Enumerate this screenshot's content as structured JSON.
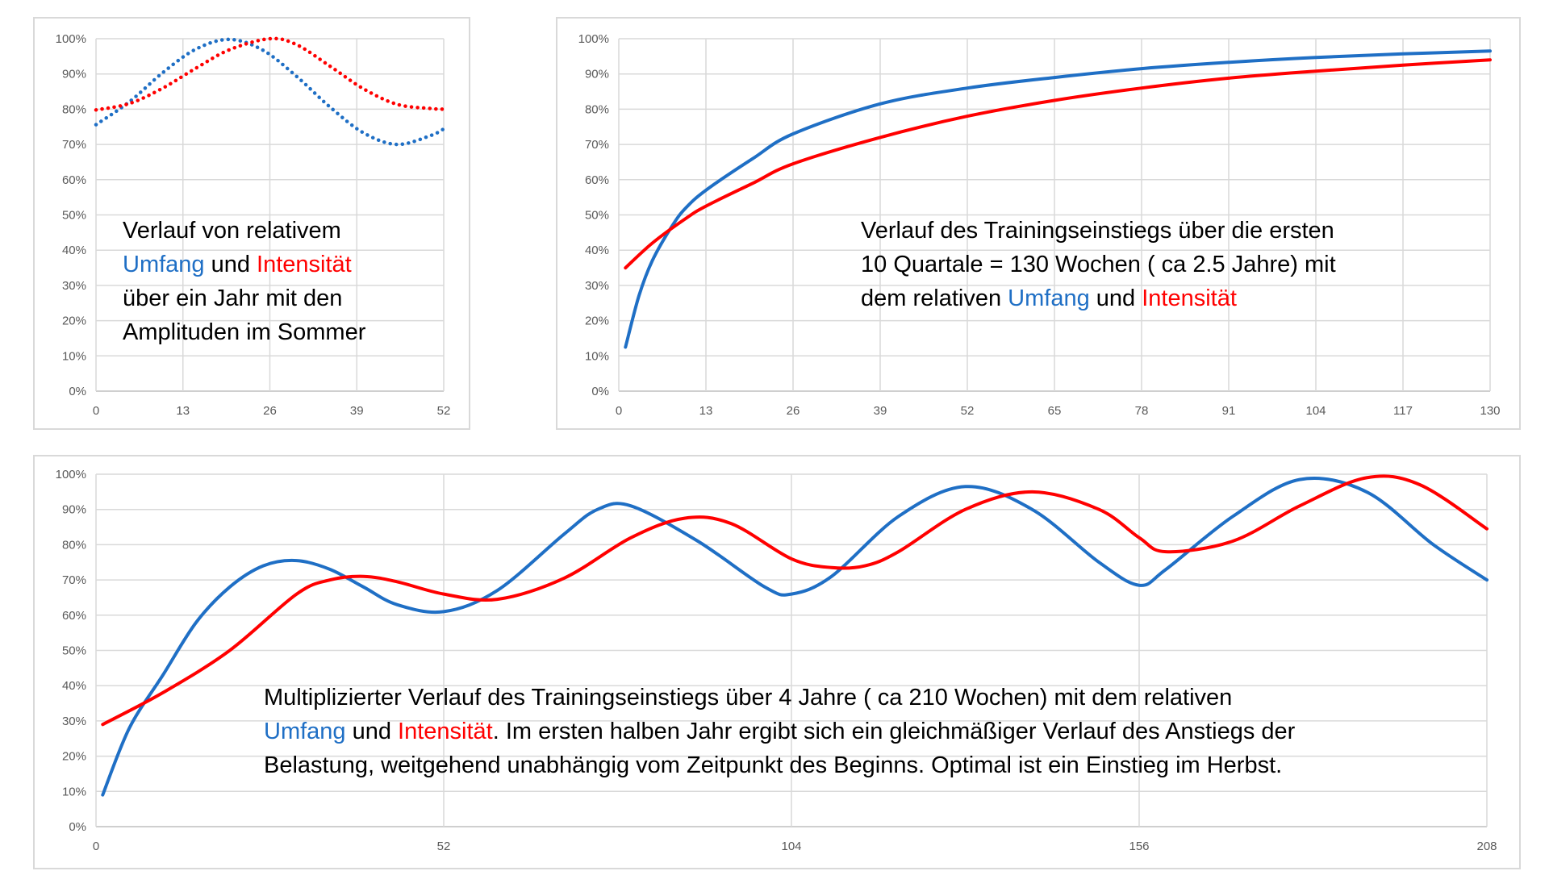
{
  "colors": {
    "umfang": "#1f6fc5",
    "intensitaet": "#ff0000",
    "grid": "#d9d9d9",
    "tick_text": "#595959"
  },
  "chart_data": [
    {
      "type": "scatter",
      "x_ticks": [
        "0",
        "13",
        "26",
        "39",
        "52"
      ],
      "y_ticks": [
        "0%",
        "10%",
        "20%",
        "30%",
        "40%",
        "50%",
        "60%",
        "70%",
        "80%",
        "90%",
        "100%"
      ],
      "xlim": [
        0,
        52
      ],
      "ylim": [
        0,
        100
      ],
      "grid": true,
      "caption": {
        "line1": "Verlauf von relativem",
        "line2_blue": "Umfang",
        "line2_mid": " und ",
        "line2_red": "Intensität",
        "line3": "über ein Jahr mit den",
        "line4": "Amplituden im Sommer"
      },
      "series": [
        {
          "color": "#1f6fc5",
          "style": "dotted",
          "x": [
            0,
            5,
            10,
            15,
            20,
            25,
            30,
            35,
            40,
            45,
            50,
            52
          ],
          "y": [
            75.6,
            82.1,
            90.4,
            97.1,
            99.8,
            96.7,
            89.3,
            80.6,
            73.3,
            70.0,
            72.5,
            74.4
          ]
        },
        {
          "color": "#ff0000",
          "style": "dotted",
          "x": [
            0,
            5,
            10,
            15,
            20,
            26,
            30,
            35,
            40,
            45,
            50,
            52
          ],
          "y": [
            79.8,
            81.6,
            86.0,
            91.7,
            96.9,
            100.0,
            98.3,
            92.2,
            85.8,
            81.4,
            80.2,
            80.0
          ]
        }
      ]
    },
    {
      "type": "line",
      "x_ticks": [
        "0",
        "13",
        "26",
        "39",
        "52",
        "65",
        "78",
        "91",
        "104",
        "117",
        "130"
      ],
      "y_ticks": [
        "0%",
        "10%",
        "20%",
        "30%",
        "40%",
        "50%",
        "60%",
        "70%",
        "80%",
        "90%",
        "100%"
      ],
      "xlim": [
        0,
        130
      ],
      "ylim": [
        0,
        100
      ],
      "grid": true,
      "caption": {
        "line1": "Verlauf des Trainingseinstiegs über die ersten",
        "line2": "10 Quartale = 130 Wochen ( ca 2.5 Jahre) mit",
        "line3_pre": "dem relativen ",
        "line3_blue": "Umfang",
        "line3_mid": " und ",
        "line3_red": "Intensität"
      },
      "series": [
        {
          "color": "#1f6fc5",
          "x": [
            1,
            3,
            5,
            8,
            10,
            13,
            20,
            26,
            39,
            52,
            65,
            78,
            91,
            104,
            117,
            130
          ],
          "y": [
            12.5,
            27,
            37,
            47,
            52,
            57,
            66,
            73,
            81.5,
            86,
            89,
            91.5,
            93.3,
            94.7,
            95.7,
            96.5
          ]
        },
        {
          "color": "#ff0000",
          "x": [
            1,
            5,
            10,
            13,
            20,
            26,
            39,
            52,
            65,
            78,
            91,
            104,
            117,
            130
          ],
          "y": [
            35,
            42,
            49,
            52.5,
            59,
            64.5,
            72,
            78,
            82.5,
            86,
            88.8,
            90.8,
            92.5,
            94
          ]
        }
      ]
    },
    {
      "type": "line",
      "x_ticks": [
        "0",
        "52",
        "104",
        "156",
        "208"
      ],
      "y_ticks": [
        "0%",
        "10%",
        "20%",
        "30%",
        "40%",
        "50%",
        "60%",
        "70%",
        "80%",
        "90%",
        "100%"
      ],
      "xlim": [
        0,
        208
      ],
      "ylim": [
        0,
        100
      ],
      "grid": true,
      "caption": {
        "line1": "Multiplizierter Verlauf des Trainingseinstiegs über 4 Jahre ( ca 210 Wochen) mit dem relativen",
        "line2_blue": "Umfang",
        "line2_mid": " und ",
        "line2_red": "Intensität",
        "line2_post": ". Im ersten halben Jahr ergibt sich ein gleichmäßiger Verlauf des Anstiegs der",
        "line3": "Belastung, weitgehend unabhängig vom Zeitpunkt des Beginns. Optimal ist ein Einstieg im Herbst."
      },
      "series": [
        {
          "color": "#1f6fc5",
          "x": [
            1,
            5,
            10,
            15,
            20,
            25,
            30,
            35,
            40,
            45,
            52,
            60,
            70,
            75,
            80,
            90,
            100,
            104,
            110,
            120,
            130,
            140,
            150,
            156,
            160,
            170,
            180,
            190,
            200,
            208
          ],
          "y": [
            9,
            28,
            43,
            58,
            68,
            74,
            75.5,
            73,
            68,
            63,
            61,
            67,
            83,
            90,
            91,
            81,
            68,
            66,
            71,
            88,
            96.5,
            90,
            75,
            68.5,
            73,
            88,
            98.5,
            95,
            80,
            70
          ]
        },
        {
          "color": "#ff0000",
          "x": [
            1,
            10,
            20,
            30,
            35,
            40,
            45,
            52,
            60,
            70,
            80,
            88,
            95,
            104,
            110,
            115,
            120,
            130,
            140,
            150,
            156,
            160,
            170,
            180,
            190,
            198,
            208
          ],
          "y": [
            29,
            38,
            50,
            66,
            70,
            71,
            69.5,
            66,
            64.5,
            70.5,
            82,
            87.5,
            86,
            76,
            73.5,
            74,
            78,
            90,
            95,
            90,
            82,
            78,
            81,
            91,
            99,
            97,
            84.5
          ]
        }
      ]
    }
  ]
}
